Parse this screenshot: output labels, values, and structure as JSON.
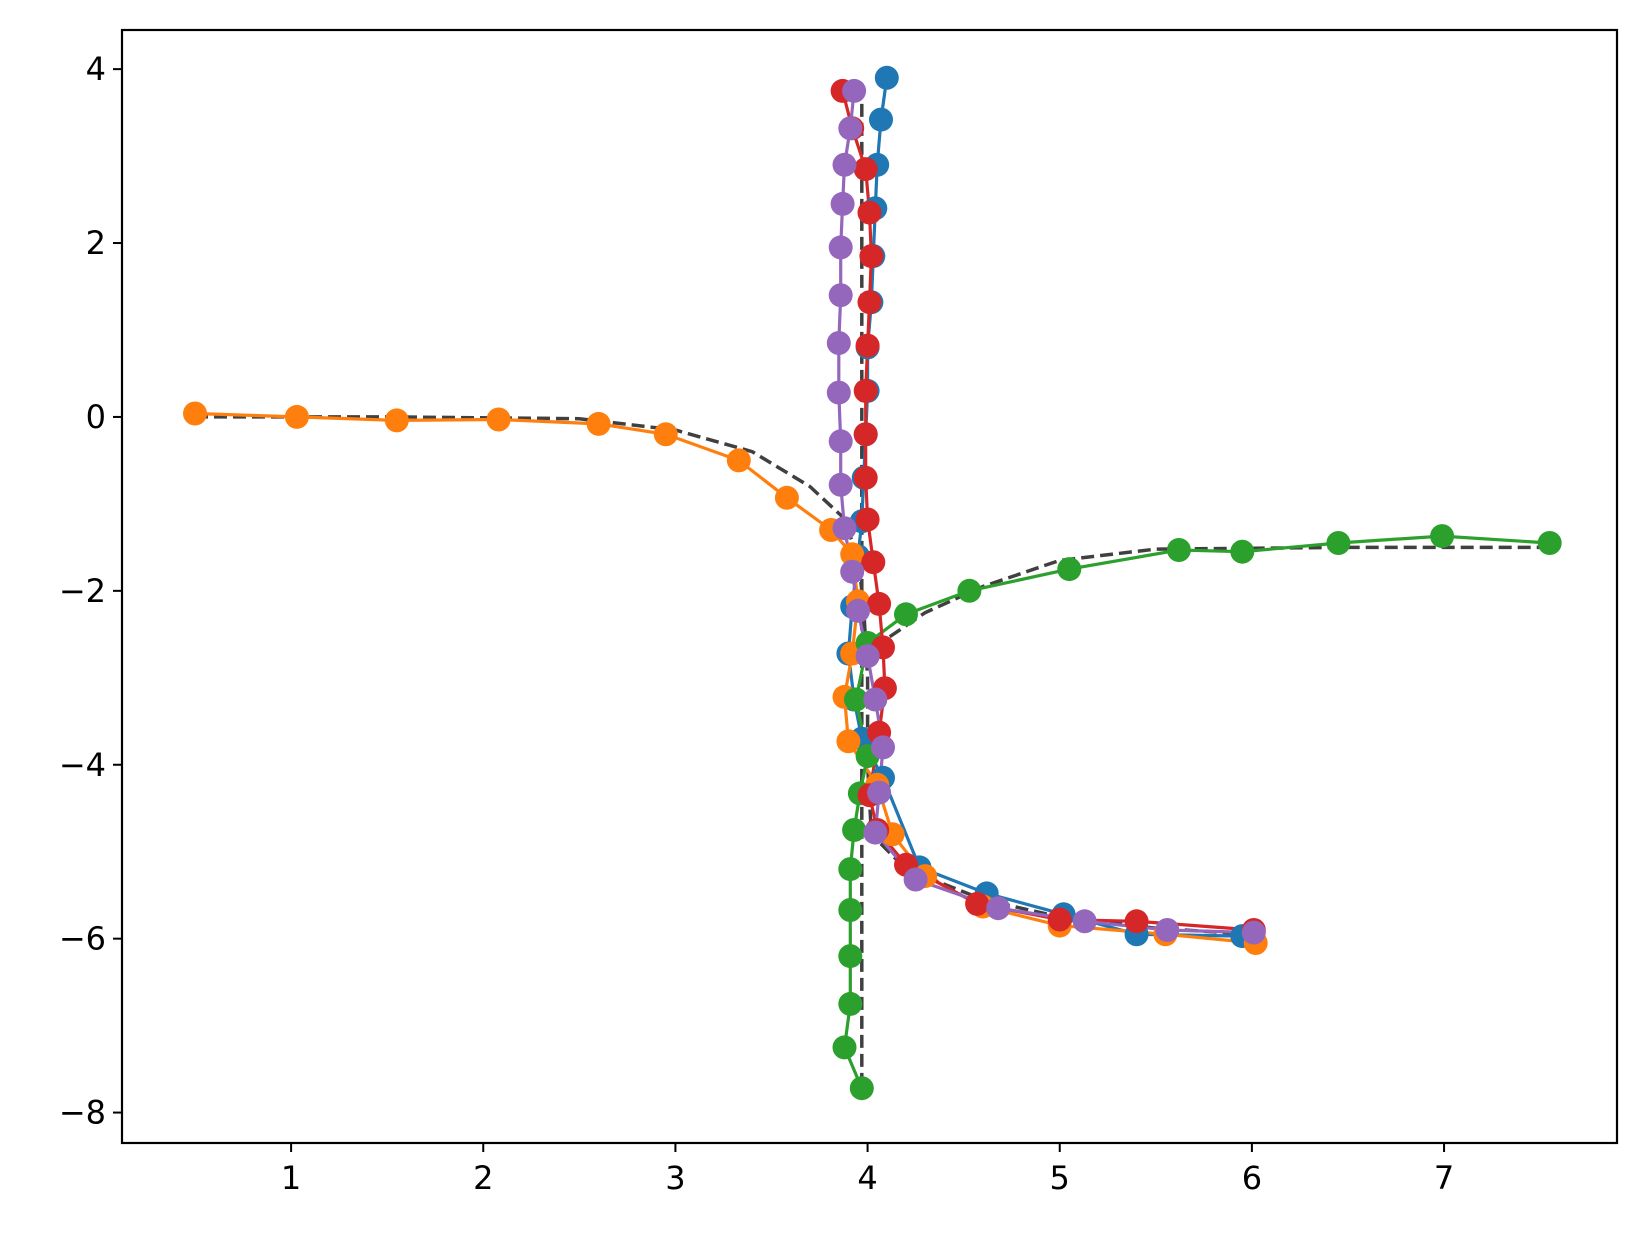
{
  "chart_data": {
    "type": "line",
    "title": "",
    "xlabel": "",
    "ylabel": "",
    "xlim": [
      0.12,
      7.9
    ],
    "ylim": [
      -8.35,
      4.45
    ],
    "x_ticks": [
      1,
      2,
      3,
      4,
      5,
      6,
      7
    ],
    "x_tick_labels": [
      "1",
      "2",
      "3",
      "4",
      "5",
      "6",
      "7"
    ],
    "y_ticks": [
      4,
      2,
      0,
      -2,
      -4,
      -6,
      -8
    ],
    "y_tick_labels": [
      "4",
      "2",
      "0",
      "−2",
      "−4",
      "−6",
      "−8"
    ],
    "grid": false,
    "legend": "none",
    "reference_paths": [
      {
        "style": "dashed",
        "color": "#404040",
        "points": [
          [
            0.5,
            0
          ],
          [
            1.5,
            0
          ],
          [
            2.5,
            -0.02
          ],
          [
            3,
            -0.15
          ],
          [
            3.4,
            -0.4
          ],
          [
            3.7,
            -0.8
          ],
          [
            3.87,
            -1.15
          ],
          [
            3.95,
            -1.6
          ],
          [
            3.98,
            -2.2
          ],
          [
            4,
            -3.0
          ],
          [
            4.0,
            -4.0
          ],
          [
            4.02,
            -4.8
          ],
          [
            4.2,
            -5.2
          ],
          [
            4.6,
            -5.55
          ],
          [
            5,
            -5.75
          ],
          [
            5.5,
            -5.88
          ],
          [
            6,
            -5.95
          ]
        ]
      },
      {
        "style": "dashed",
        "color": "#404040",
        "points": [
          [
            3.97,
            3.6
          ],
          [
            3.97,
            -7.7
          ]
        ]
      },
      {
        "style": "dashed",
        "color": "#404040",
        "points": [
          [
            7.55,
            -1.5
          ],
          [
            6.5,
            -1.5
          ],
          [
            5.5,
            -1.52
          ],
          [
            5.0,
            -1.65
          ],
          [
            4.6,
            -1.95
          ],
          [
            4.3,
            -2.25
          ],
          [
            4.1,
            -2.55
          ],
          [
            3.97,
            -2.8
          ]
        ]
      }
    ],
    "series": [
      {
        "color": "#1f77b4",
        "points": [
          [
            4.1,
            3.9
          ],
          [
            4.07,
            3.42
          ],
          [
            4.05,
            2.9
          ],
          [
            4.04,
            2.4
          ],
          [
            4.03,
            1.85
          ],
          [
            4.02,
            1.32
          ],
          [
            4.0,
            0.8
          ],
          [
            4.0,
            0.3
          ],
          [
            3.99,
            -0.2
          ],
          [
            3.98,
            -0.7
          ],
          [
            3.97,
            -1.2
          ],
          [
            3.95,
            -1.6
          ],
          [
            3.92,
            -2.18
          ],
          [
            3.9,
            -2.72
          ],
          [
            3.93,
            -3.25
          ],
          [
            3.97,
            -3.7
          ],
          [
            4.08,
            -4.15
          ],
          [
            4.27,
            -5.18
          ],
          [
            4.62,
            -5.48
          ],
          [
            5.02,
            -5.72
          ],
          [
            5.4,
            -5.95
          ],
          [
            5.95,
            -5.97
          ]
        ]
      },
      {
        "color": "#ff7f0e",
        "points": [
          [
            0.5,
            0.04
          ],
          [
            1.03,
            0.0
          ],
          [
            1.55,
            -0.04
          ],
          [
            2.08,
            -0.03
          ],
          [
            2.6,
            -0.08
          ],
          [
            2.95,
            -0.2
          ],
          [
            3.33,
            -0.5
          ],
          [
            3.58,
            -0.93
          ],
          [
            3.81,
            -1.3
          ],
          [
            3.92,
            -1.58
          ],
          [
            3.95,
            -2.12
          ],
          [
            3.92,
            -2.72
          ],
          [
            3.88,
            -3.22
          ],
          [
            3.9,
            -3.73
          ],
          [
            4.05,
            -4.23
          ],
          [
            4.13,
            -4.8
          ],
          [
            4.3,
            -5.28
          ],
          [
            4.6,
            -5.63
          ],
          [
            5.0,
            -5.85
          ],
          [
            5.55,
            -5.95
          ],
          [
            6.02,
            -6.05
          ]
        ]
      },
      {
        "color": "#2ca02c",
        "points": [
          [
            7.55,
            -1.45
          ],
          [
            6.99,
            -1.37
          ],
          [
            6.45,
            -1.45
          ],
          [
            5.95,
            -1.55
          ],
          [
            5.62,
            -1.53
          ],
          [
            5.05,
            -1.75
          ],
          [
            4.53,
            -2.0
          ],
          [
            4.2,
            -2.27
          ],
          [
            4.0,
            -2.6
          ],
          [
            3.94,
            -3.25
          ],
          [
            4.0,
            -3.9
          ],
          [
            3.96,
            -4.33
          ],
          [
            3.93,
            -4.75
          ],
          [
            3.91,
            -5.2
          ],
          [
            3.91,
            -5.67
          ],
          [
            3.91,
            -6.2
          ],
          [
            3.91,
            -6.75
          ],
          [
            3.88,
            -7.25
          ],
          [
            3.97,
            -7.72
          ]
        ]
      },
      {
        "color": "#d62728",
        "points": [
          [
            3.87,
            3.75
          ],
          [
            3.92,
            3.32
          ],
          [
            3.99,
            2.85
          ],
          [
            4.01,
            2.35
          ],
          [
            4.02,
            1.85
          ],
          [
            4.01,
            1.32
          ],
          [
            4.0,
            0.82
          ],
          [
            3.99,
            0.3
          ],
          [
            3.99,
            -0.2
          ],
          [
            3.99,
            -0.7
          ],
          [
            4.0,
            -1.18
          ],
          [
            4.03,
            -1.67
          ],
          [
            4.06,
            -2.15
          ],
          [
            4.08,
            -2.65
          ],
          [
            4.09,
            -3.12
          ],
          [
            4.06,
            -3.63
          ],
          [
            4.01,
            -4.35
          ],
          [
            4.05,
            -4.75
          ],
          [
            4.2,
            -5.15
          ],
          [
            4.57,
            -5.6
          ],
          [
            5.0,
            -5.78
          ],
          [
            5.4,
            -5.8
          ],
          [
            6.01,
            -5.9
          ]
        ]
      },
      {
        "color": "#9467bd",
        "points": [
          [
            3.93,
            3.75
          ],
          [
            3.91,
            3.32
          ],
          [
            3.88,
            2.9
          ],
          [
            3.87,
            2.45
          ],
          [
            3.86,
            1.95
          ],
          [
            3.86,
            1.4
          ],
          [
            3.85,
            0.85
          ],
          [
            3.85,
            0.28
          ],
          [
            3.86,
            -0.28
          ],
          [
            3.86,
            -0.78
          ],
          [
            3.88,
            -1.28
          ],
          [
            3.92,
            -1.78
          ],
          [
            3.95,
            -2.23
          ],
          [
            4.0,
            -2.75
          ],
          [
            4.04,
            -3.25
          ],
          [
            4.08,
            -3.8
          ],
          [
            4.06,
            -4.32
          ],
          [
            4.04,
            -4.78
          ],
          [
            4.25,
            -5.32
          ],
          [
            4.68,
            -5.65
          ],
          [
            5.13,
            -5.8
          ],
          [
            5.56,
            -5.9
          ],
          [
            6.01,
            -5.93
          ]
        ]
      }
    ]
  }
}
